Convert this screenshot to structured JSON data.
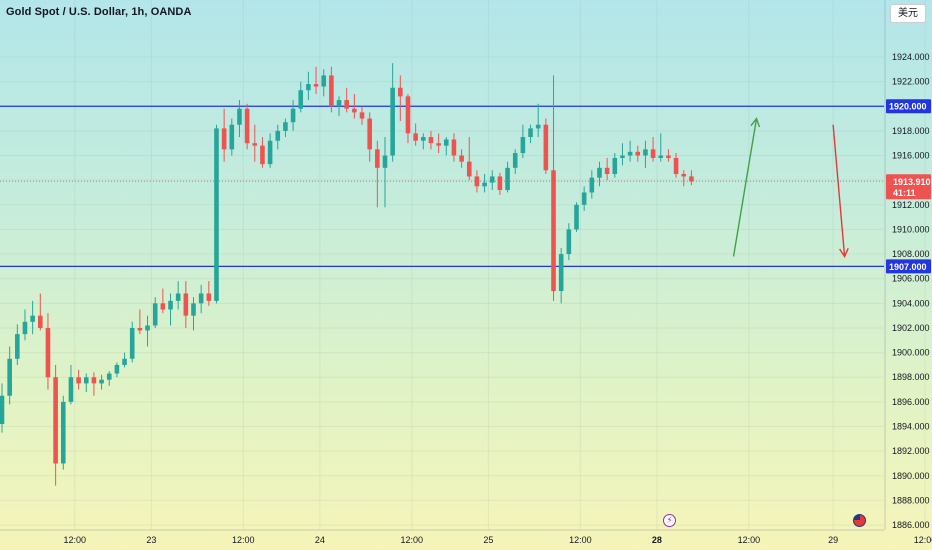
{
  "header": {
    "title": "Gold Spot / U.S. Dollar, 1h, OANDA",
    "currency_button": "美元"
  },
  "colors": {
    "up": "#26a69a",
    "down": "#ef5350",
    "level_line": "#2135e0",
    "price_line": "#ef5350",
    "arrow_up": "#43a047",
    "arrow_down": "#e53935"
  },
  "icons": [
    "lightning-icon",
    "us-flag-icon"
  ],
  "chart_data": {
    "type": "candlestick",
    "title": "Gold Spot / U.S. Dollar, 1h, OANDA",
    "ylim": [
      1885.6,
      1927.0
    ],
    "y_ticks": [
      "1924.000",
      "1922.000",
      "1920.000",
      "1918.000",
      "1916.000",
      "1914.000",
      "1912.000",
      "1910.000",
      "1908.000",
      "1906.000",
      "1904.000",
      "1902.000",
      "1900.000",
      "1898.000",
      "1896.000",
      "1894.000",
      "1892.000",
      "1890.000",
      "1888.000",
      "1886.000"
    ],
    "y_tick_values": [
      1924,
      1922,
      1920,
      1918,
      1916,
      1914,
      1912,
      1910,
      1908,
      1906,
      1904,
      1902,
      1900,
      1898,
      1896,
      1894,
      1892,
      1890,
      1888,
      1886
    ],
    "x_ticks": [
      {
        "label": "12:00",
        "bar": 9.5
      },
      {
        "label": "23",
        "bar": 19.5
      },
      {
        "label": "12:00",
        "bar": 31.5
      },
      {
        "label": "24",
        "bar": 41.5
      },
      {
        "label": "12:00",
        "bar": 53.5
      },
      {
        "label": "25",
        "bar": 63.5
      },
      {
        "label": "12:00",
        "bar": 75.5
      },
      {
        "label": "28",
        "bar": 85.5,
        "bold": true
      },
      {
        "label": "12:00",
        "bar": 97.5
      },
      {
        "label": "29",
        "bar": 108.5
      },
      {
        "label": "12:00",
        "bar": 120.5
      }
    ],
    "levels": [
      {
        "value": 1920.0,
        "label": "1920.000"
      },
      {
        "value": 1907.0,
        "label": "1907.000"
      }
    ],
    "current_price": {
      "value": 1913.91,
      "label": "1913.910",
      "countdown": "41:11"
    },
    "projections": [
      {
        "direction": "up",
        "from": [
          95.5,
          1907.8
        ],
        "to": [
          98.5,
          1919.0
        ]
      },
      {
        "direction": "down",
        "from": [
          108.5,
          1918.5
        ],
        "to": [
          110.0,
          1907.8
        ]
      }
    ],
    "candles": [
      {
        "o": 1894.2,
        "h": 1897.5,
        "l": 1893.5,
        "c": 1896.5
      },
      {
        "o": 1896.5,
        "h": 1900.5,
        "l": 1895.8,
        "c": 1899.5
      },
      {
        "o": 1899.5,
        "h": 1902.3,
        "l": 1899.0,
        "c": 1901.5
      },
      {
        "o": 1901.5,
        "h": 1903.5,
        "l": 1901.0,
        "c": 1902.5
      },
      {
        "o": 1902.5,
        "h": 1904.2,
        "l": 1901.5,
        "c": 1903.0
      },
      {
        "o": 1903.0,
        "h": 1904.8,
        "l": 1901.8,
        "c": 1902.0
      },
      {
        "o": 1902.0,
        "h": 1903.2,
        "l": 1897.0,
        "c": 1898.0
      },
      {
        "o": 1898.0,
        "h": 1899.0,
        "l": 1889.2,
        "c": 1891.0
      },
      {
        "o": 1891.0,
        "h": 1896.5,
        "l": 1890.5,
        "c": 1896.0
      },
      {
        "o": 1896.0,
        "h": 1899.0,
        "l": 1895.8,
        "c": 1898.0
      },
      {
        "o": 1898.0,
        "h": 1898.6,
        "l": 1897.0,
        "c": 1897.5
      },
      {
        "o": 1897.5,
        "h": 1898.3,
        "l": 1896.8,
        "c": 1898.0
      },
      {
        "o": 1898.0,
        "h": 1898.4,
        "l": 1896.5,
        "c": 1897.5
      },
      {
        "o": 1897.5,
        "h": 1898.2,
        "l": 1897.0,
        "c": 1897.8
      },
      {
        "o": 1897.8,
        "h": 1898.5,
        "l": 1897.3,
        "c": 1898.3
      },
      {
        "o": 1898.3,
        "h": 1899.2,
        "l": 1898.0,
        "c": 1899.0
      },
      {
        "o": 1899.0,
        "h": 1900.0,
        "l": 1898.8,
        "c": 1899.5
      },
      {
        "o": 1899.5,
        "h": 1902.5,
        "l": 1899.2,
        "c": 1902.0
      },
      {
        "o": 1902.0,
        "h": 1903.5,
        "l": 1901.5,
        "c": 1901.8
      },
      {
        "o": 1901.8,
        "h": 1903.0,
        "l": 1900.5,
        "c": 1902.2
      },
      {
        "o": 1902.2,
        "h": 1904.5,
        "l": 1902.0,
        "c": 1904.0
      },
      {
        "o": 1904.0,
        "h": 1905.2,
        "l": 1903.2,
        "c": 1903.5
      },
      {
        "o": 1903.5,
        "h": 1904.8,
        "l": 1902.2,
        "c": 1904.2
      },
      {
        "o": 1904.2,
        "h": 1905.8,
        "l": 1903.5,
        "c": 1904.8
      },
      {
        "o": 1904.8,
        "h": 1905.8,
        "l": 1902.0,
        "c": 1903.0
      },
      {
        "o": 1903.0,
        "h": 1904.5,
        "l": 1901.8,
        "c": 1904.0
      },
      {
        "o": 1904.0,
        "h": 1905.5,
        "l": 1903.2,
        "c": 1904.8
      },
      {
        "o": 1904.8,
        "h": 1905.8,
        "l": 1903.8,
        "c": 1904.2
      },
      {
        "o": 1904.2,
        "h": 1918.5,
        "l": 1904.0,
        "c": 1918.2
      },
      {
        "o": 1918.2,
        "h": 1919.8,
        "l": 1915.5,
        "c": 1916.5
      },
      {
        "o": 1916.5,
        "h": 1919.0,
        "l": 1916.0,
        "c": 1918.5
      },
      {
        "o": 1918.5,
        "h": 1920.5,
        "l": 1917.5,
        "c": 1919.8
      },
      {
        "o": 1919.8,
        "h": 1920.2,
        "l": 1916.5,
        "c": 1917.0
      },
      {
        "o": 1917.0,
        "h": 1918.5,
        "l": 1915.5,
        "c": 1916.8
      },
      {
        "o": 1916.8,
        "h": 1917.5,
        "l": 1915.0,
        "c": 1915.3
      },
      {
        "o": 1915.3,
        "h": 1917.8,
        "l": 1915.0,
        "c": 1917.2
      },
      {
        "o": 1917.2,
        "h": 1918.5,
        "l": 1916.5,
        "c": 1918.0
      },
      {
        "o": 1918.0,
        "h": 1919.0,
        "l": 1917.5,
        "c": 1918.7
      },
      {
        "o": 1918.7,
        "h": 1920.5,
        "l": 1918.0,
        "c": 1919.8
      },
      {
        "o": 1919.8,
        "h": 1922.0,
        "l": 1919.5,
        "c": 1921.3
      },
      {
        "o": 1921.3,
        "h": 1922.8,
        "l": 1920.5,
        "c": 1921.8
      },
      {
        "o": 1921.8,
        "h": 1923.2,
        "l": 1921.0,
        "c": 1921.6
      },
      {
        "o": 1921.6,
        "h": 1923.0,
        "l": 1920.8,
        "c": 1922.5
      },
      {
        "o": 1922.5,
        "h": 1923.2,
        "l": 1919.5,
        "c": 1920.0
      },
      {
        "o": 1920.0,
        "h": 1920.8,
        "l": 1919.2,
        "c": 1920.5
      },
      {
        "o": 1920.5,
        "h": 1921.5,
        "l": 1919.5,
        "c": 1919.8
      },
      {
        "o": 1919.8,
        "h": 1921.0,
        "l": 1919.0,
        "c": 1919.5
      },
      {
        "o": 1919.5,
        "h": 1920.0,
        "l": 1918.5,
        "c": 1919.0
      },
      {
        "o": 1919.0,
        "h": 1919.5,
        "l": 1915.5,
        "c": 1916.5
      },
      {
        "o": 1916.5,
        "h": 1917.2,
        "l": 1911.8,
        "c": 1915.0
      },
      {
        "o": 1915.0,
        "h": 1917.5,
        "l": 1911.8,
        "c": 1916.0
      },
      {
        "o": 1916.0,
        "h": 1923.5,
        "l": 1915.5,
        "c": 1921.5
      },
      {
        "o": 1921.5,
        "h": 1922.5,
        "l": 1918.8,
        "c": 1920.8
      },
      {
        "o": 1920.8,
        "h": 1921.0,
        "l": 1917.0,
        "c": 1917.8
      },
      {
        "o": 1917.8,
        "h": 1918.6,
        "l": 1916.8,
        "c": 1917.2
      },
      {
        "o": 1917.2,
        "h": 1917.8,
        "l": 1916.5,
        "c": 1917.5
      },
      {
        "o": 1917.5,
        "h": 1918.0,
        "l": 1916.5,
        "c": 1917.0
      },
      {
        "o": 1917.0,
        "h": 1917.8,
        "l": 1916.2,
        "c": 1916.8
      },
      {
        "o": 1916.8,
        "h": 1917.5,
        "l": 1916.0,
        "c": 1917.3
      },
      {
        "o": 1917.3,
        "h": 1917.8,
        "l": 1915.5,
        "c": 1916.0
      },
      {
        "o": 1916.0,
        "h": 1916.5,
        "l": 1915.0,
        "c": 1915.5
      },
      {
        "o": 1915.5,
        "h": 1917.5,
        "l": 1914.0,
        "c": 1914.3
      },
      {
        "o": 1914.3,
        "h": 1914.8,
        "l": 1913.0,
        "c": 1913.5
      },
      {
        "o": 1913.5,
        "h": 1914.5,
        "l": 1913.0,
        "c": 1913.8
      },
      {
        "o": 1913.8,
        "h": 1914.8,
        "l": 1913.2,
        "c": 1914.3
      },
      {
        "o": 1914.3,
        "h": 1914.6,
        "l": 1912.8,
        "c": 1913.2
      },
      {
        "o": 1913.2,
        "h": 1915.5,
        "l": 1913.0,
        "c": 1915.0
      },
      {
        "o": 1915.0,
        "h": 1916.5,
        "l": 1914.5,
        "c": 1916.2
      },
      {
        "o": 1916.2,
        "h": 1918.5,
        "l": 1915.8,
        "c": 1917.5
      },
      {
        "o": 1917.5,
        "h": 1918.5,
        "l": 1917.0,
        "c": 1918.2
      },
      {
        "o": 1918.2,
        "h": 1920.2,
        "l": 1917.5,
        "c": 1918.5
      },
      {
        "o": 1918.5,
        "h": 1919.0,
        "l": 1914.5,
        "c": 1914.8
      },
      {
        "o": 1914.8,
        "h": 1922.5,
        "l": 1904.2,
        "c": 1905.0
      },
      {
        "o": 1905.0,
        "h": 1908.5,
        "l": 1904.0,
        "c": 1908.0
      },
      {
        "o": 1908.0,
        "h": 1910.5,
        "l": 1907.5,
        "c": 1910.0
      },
      {
        "o": 1910.0,
        "h": 1912.2,
        "l": 1909.8,
        "c": 1912.0
      },
      {
        "o": 1912.0,
        "h": 1913.5,
        "l": 1911.5,
        "c": 1913.0
      },
      {
        "o": 1913.0,
        "h": 1914.8,
        "l": 1912.5,
        "c": 1914.2
      },
      {
        "o": 1914.2,
        "h": 1915.5,
        "l": 1913.5,
        "c": 1915.0
      },
      {
        "o": 1915.0,
        "h": 1915.8,
        "l": 1914.0,
        "c": 1914.5
      },
      {
        "o": 1914.5,
        "h": 1916.2,
        "l": 1914.2,
        "c": 1915.8
      },
      {
        "o": 1915.8,
        "h": 1917.0,
        "l": 1915.2,
        "c": 1916.0
      },
      {
        "o": 1916.0,
        "h": 1917.2,
        "l": 1915.5,
        "c": 1916.3
      },
      {
        "o": 1916.3,
        "h": 1916.8,
        "l": 1915.5,
        "c": 1916.0
      },
      {
        "o": 1916.0,
        "h": 1917.2,
        "l": 1915.0,
        "c": 1916.5
      },
      {
        "o": 1916.5,
        "h": 1917.5,
        "l": 1915.5,
        "c": 1915.8
      },
      {
        "o": 1915.8,
        "h": 1917.8,
        "l": 1915.5,
        "c": 1916.0
      },
      {
        "o": 1916.0,
        "h": 1916.5,
        "l": 1915.5,
        "c": 1915.8
      },
      {
        "o": 1915.8,
        "h": 1916.2,
        "l": 1914.2,
        "c": 1914.5
      },
      {
        "o": 1914.5,
        "h": 1914.8,
        "l": 1913.5,
        "c": 1914.3
      },
      {
        "o": 1914.3,
        "h": 1914.8,
        "l": 1913.6,
        "c": 1913.9
      }
    ]
  }
}
